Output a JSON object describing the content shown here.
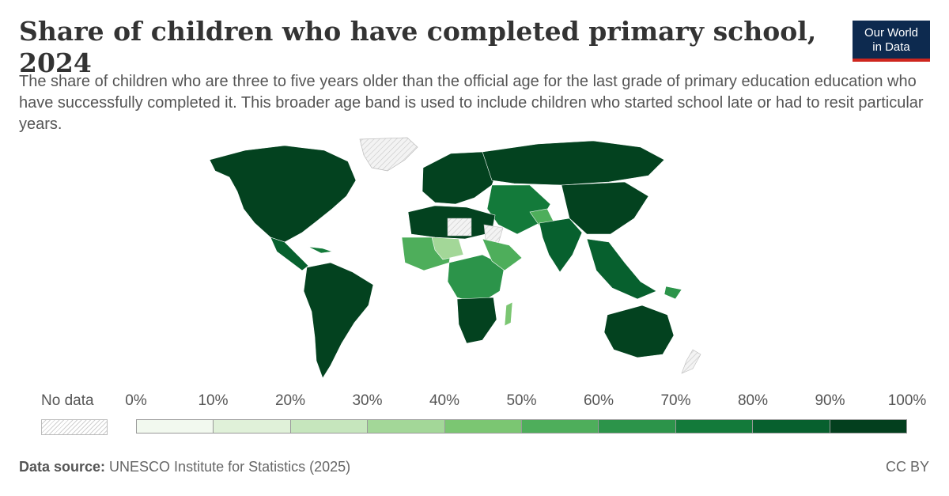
{
  "title": "Share of children who have completed primary school, 2024",
  "logo": {
    "line1": "Our World",
    "line2": "in Data"
  },
  "subtitle": "The share of children who are three to five years older than the official age for the last grade of primary education education who have successfully completed it. This broader age band is used to include children who started school late or had to resit particular years.",
  "legend": {
    "no_data_label": "No data",
    "ticks": [
      "0%",
      "10%",
      "20%",
      "30%",
      "40%",
      "50%",
      "60%",
      "70%",
      "80%",
      "90%",
      "100%"
    ],
    "bin_colors": [
      "#f2f9ef",
      "#e0f1d9",
      "#c6e6bd",
      "#a3d798",
      "#7bc672",
      "#4eae5b",
      "#2c944a",
      "#137a3a",
      "#07602e",
      "#033f1e"
    ]
  },
  "colors": {
    "land_high": "#03421f",
    "land_mid": "#137a3a",
    "land_mid2": "#2c944a",
    "land_low": "#7bc672",
    "land_lower": "#a3d798",
    "no_data": "#e6e6e6"
  },
  "footer": {
    "source_label": "Data source:",
    "source_text": " UNESCO Institute for Statistics (2025)",
    "license": "CC BY"
  }
}
